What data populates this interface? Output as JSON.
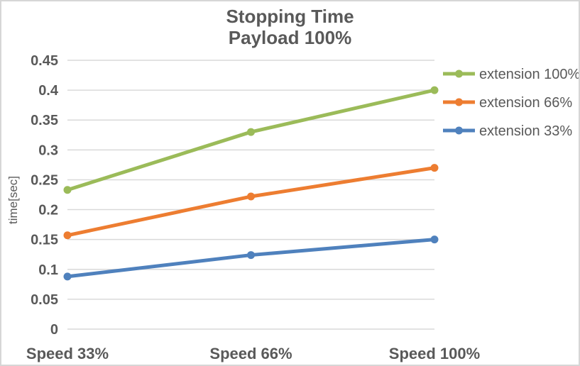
{
  "frame": {
    "background": "#ffffff",
    "border_color": "#d6d6d6"
  },
  "chart_data": {
    "type": "line",
    "title": "Stopping Time",
    "subtitle": "Payload 100%",
    "categories": [
      "Speed 33%",
      "Speed 66%",
      "Speed 100%"
    ],
    "series": [
      {
        "name": "extension 100%",
        "color": "#9BBB59",
        "values": [
          0.233,
          0.33,
          0.4
        ]
      },
      {
        "name": "extension 66%",
        "color": "#ED7D31",
        "values": [
          0.157,
          0.222,
          0.27
        ]
      },
      {
        "name": "extension 33%",
        "color": "#4F81BD",
        "values": [
          0.088,
          0.124,
          0.15
        ]
      }
    ],
    "xlabel": "",
    "ylabel": "time[sec]",
    "ylim": [
      0,
      0.45
    ],
    "ytick_step": 0.05,
    "ytick_labels": [
      "0",
      "0.05",
      "0.1",
      "0.15",
      "0.2",
      "0.25",
      "0.3",
      "0.35",
      "0.4",
      "0.45"
    ],
    "grid": true,
    "grid_color": "#d9d9d9",
    "text_color": "#595959",
    "legend_position": "right",
    "marker": "circle"
  }
}
